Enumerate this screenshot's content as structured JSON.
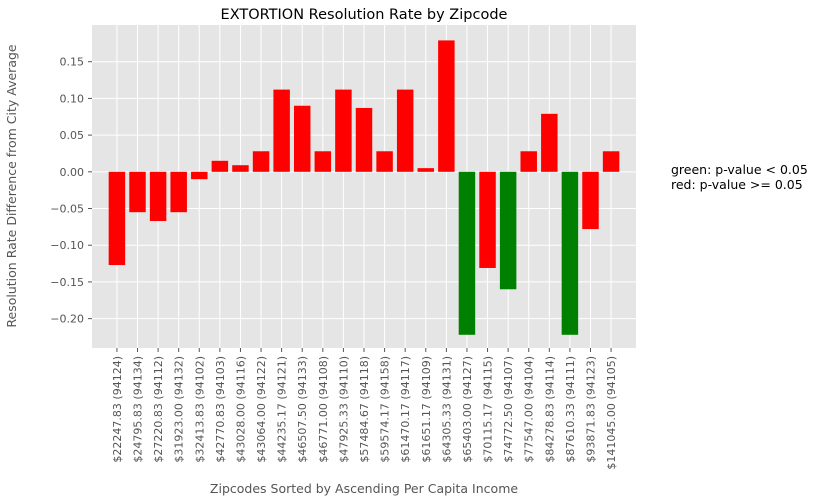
{
  "chart_data": {
    "type": "bar",
    "title": "EXTORTION Resolution Rate by Zipcode",
    "xlabel": "Zipcodes Sorted by Ascending Per Capita Income",
    "ylabel": "Resolution Rate Difference from City Average",
    "ylim": [
      -0.24,
      0.2
    ],
    "yticks": [
      0.15,
      0.1,
      0.05,
      0.0,
      -0.05,
      -0.1,
      -0.15,
      -0.2
    ],
    "ytick_labels": [
      "0.15",
      "0.10",
      "0.05",
      "0.00",
      "−0.05",
      "−0.10",
      "−0.15",
      "−0.20"
    ],
    "grid": true,
    "categories": [
      "$22247.83 (94124)",
      "$24795.83 (94134)",
      "$27220.83 (94112)",
      "$31923.00 (94132)",
      "$32413.83 (94102)",
      "$42770.83 (94103)",
      "$43028.00 (94116)",
      "$43064.00 (94122)",
      "$44235.17 (94121)",
      "$46507.50 (94133)",
      "$46771.00 (94108)",
      "$47925.33 (94110)",
      "$57484.67 (94118)",
      "$59574.17 (94158)",
      "$61470.17 (94117)",
      "$61651.17 (94109)",
      "$64305.33 (94131)",
      "$65403.00 (94127)",
      "$70115.17 (94115)",
      "$74772.50 (94107)",
      "$77547.00 (94104)",
      "$84278.83 (94114)",
      "$87610.33 (94111)",
      "$93871.83 (94123)",
      "$141045.00 (94105)"
    ],
    "values": [
      -0.127,
      -0.055,
      -0.067,
      -0.055,
      -0.01,
      0.015,
      0.009,
      0.028,
      0.112,
      0.09,
      0.028,
      0.112,
      0.087,
      0.028,
      0.112,
      0.005,
      0.179,
      -0.222,
      -0.131,
      -0.16,
      0.028,
      0.079,
      -0.222,
      -0.078,
      0.028
    ],
    "significant": [
      false,
      false,
      false,
      false,
      false,
      false,
      false,
      false,
      false,
      false,
      false,
      false,
      false,
      false,
      false,
      false,
      false,
      true,
      false,
      true,
      false,
      false,
      true,
      false,
      false
    ],
    "colors": {
      "significant": "#008000",
      "not_significant": "#ff0000",
      "plot_bg": "#e5e5e5",
      "grid": "#ffffff"
    },
    "annotations": [
      "green: p-value < 0.05",
      "red: p-value >= 0.05"
    ]
  }
}
